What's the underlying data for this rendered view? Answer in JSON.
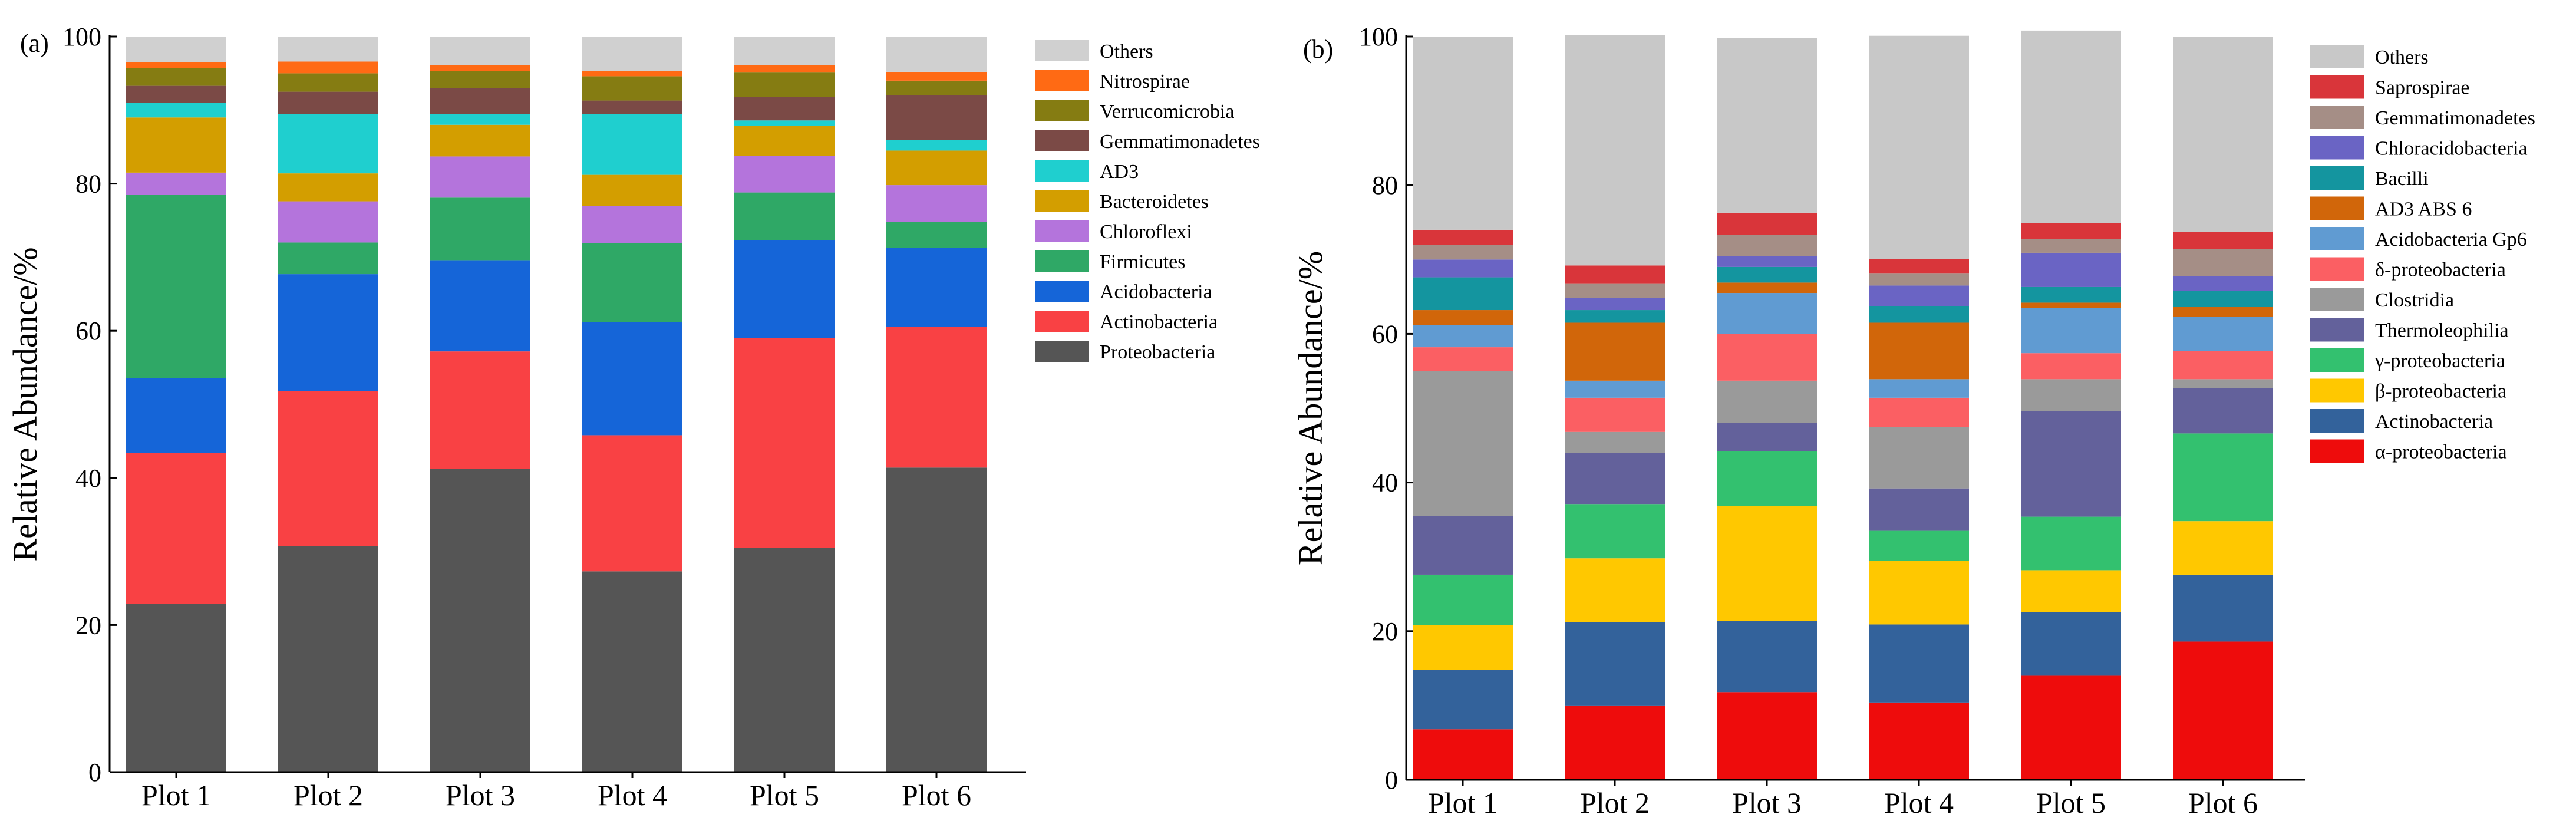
{
  "chart_data": [
    {
      "panel_label": "(a)",
      "type": "bar",
      "stacked": true,
      "ylabel": "Relative Abundance/%",
      "xlabel": "",
      "ylim": [
        0,
        100
      ],
      "yticks": [
        0,
        20,
        40,
        60,
        80,
        100
      ],
      "categories": [
        "Plot 1",
        "Plot 2",
        "Plot 3",
        "Plot 4",
        "Plot 5",
        "Plot 6"
      ],
      "legend_position": "right",
      "series": [
        {
          "name": "Proteobacteria",
          "color": "#555555",
          "values": [
            22.9,
            30.7,
            41.2,
            27.3,
            30.5,
            41.4
          ]
        },
        {
          "name": "Actinobacteria",
          "color": "#f94144",
          "values": [
            20.5,
            21.1,
            16.0,
            18.5,
            28.5,
            19.1
          ]
        },
        {
          "name": "Acidobacteria",
          "color": "#1565d8",
          "values": [
            10.2,
            15.9,
            12.4,
            15.4,
            13.3,
            10.8
          ]
        },
        {
          "name": "Firmicutes",
          "color": "#2fa866",
          "values": [
            24.9,
            4.3,
            8.5,
            10.7,
            6.5,
            3.5
          ]
        },
        {
          "name": "Chloroflexi",
          "color": "#b474dc",
          "values": [
            3.0,
            5.6,
            5.6,
            5.1,
            5.0,
            5.0
          ]
        },
        {
          "name": "Bacteroidetes",
          "color": "#d39e00",
          "values": [
            7.5,
            3.8,
            4.3,
            4.2,
            4.1,
            4.7
          ]
        },
        {
          "name": "AD3",
          "color": "#1fcfcf",
          "values": [
            2.0,
            8.1,
            1.5,
            8.3,
            0.7,
            1.4
          ]
        },
        {
          "name": "Gemmatimonadetes",
          "color": "#7b4a46",
          "values": [
            2.3,
            3.0,
            3.5,
            1.8,
            3.2,
            6.1
          ]
        },
        {
          "name": "Verrucomicrobia",
          "color": "#857c12",
          "values": [
            2.4,
            2.5,
            2.3,
            3.3,
            3.3,
            2.0
          ]
        },
        {
          "name": "Nitrospirae",
          "color": "#ff6a14",
          "values": [
            0.8,
            1.6,
            0.8,
            0.7,
            1.0,
            1.2
          ]
        },
        {
          "name": "Others",
          "color": "#d0d0d0",
          "values": [
            3.5,
            3.4,
            3.9,
            4.7,
            3.9,
            4.8
          ]
        }
      ]
    },
    {
      "panel_label": "(b)",
      "type": "bar",
      "stacked": true,
      "ylabel": "Relative Abundance/%",
      "xlabel": "",
      "ylim": [
        0,
        100
      ],
      "yticks": [
        0,
        20,
        40,
        60,
        80,
        100
      ],
      "categories": [
        "Plot 1",
        "Plot 2",
        "Plot 3",
        "Plot 4",
        "Plot 5",
        "Plot 6"
      ],
      "legend_position": "right",
      "series": [
        {
          "name": "α-proteobacteria",
          "color": "#ee0c0c",
          "values": [
            6.8,
            10.0,
            11.8,
            10.4,
            14.0,
            18.6
          ]
        },
        {
          "name": "Actinobacteria",
          "color": "#33629b",
          "values": [
            8.0,
            11.2,
            9.6,
            10.5,
            8.6,
            9.0
          ]
        },
        {
          "name": "β-proteobacteria",
          "color": "#ffc800",
          "values": [
            6.0,
            8.6,
            15.4,
            8.6,
            5.6,
            7.2
          ]
        },
        {
          "name": "γ-proteobacteria",
          "color": "#33c16f",
          "values": [
            6.8,
            7.3,
            7.4,
            4.0,
            7.2,
            11.8
          ]
        },
        {
          "name": "Thermoleophilia",
          "color": "#63619b",
          "values": [
            7.9,
            6.9,
            3.8,
            5.7,
            14.2,
            6.1
          ]
        },
        {
          "name": "Clostridia",
          "color": "#9a9a9a",
          "values": [
            19.5,
            2.8,
            5.7,
            8.3,
            4.3,
            1.2
          ]
        },
        {
          "name": "δ-proteobacteria",
          "color": "#fb5f63",
          "values": [
            3.2,
            4.6,
            6.3,
            3.9,
            3.5,
            3.8
          ]
        },
        {
          "name": "Acidobacteria Gp6",
          "color": "#609bd2",
          "values": [
            3.0,
            2.3,
            5.5,
            2.5,
            6.1,
            4.6
          ]
        },
        {
          "name": "AD3 ABS 6",
          "color": "#d1660a",
          "values": [
            2.0,
            7.8,
            1.4,
            7.6,
            0.7,
            1.3
          ]
        },
        {
          "name": "Bacilli",
          "color": "#14959f",
          "values": [
            4.4,
            1.7,
            2.1,
            2.2,
            2.1,
            2.2
          ]
        },
        {
          "name": "Chloracidobacteria",
          "color": "#6a64c4",
          "values": [
            2.4,
            1.6,
            1.5,
            2.8,
            4.6,
            2.0
          ]
        },
        {
          "name": "Gemmatimonadetes",
          "color": "#a58e86",
          "values": [
            2.0,
            2.0,
            2.8,
            1.6,
            1.9,
            3.6
          ]
        },
        {
          "name": "Saprospirae",
          "color": "#d9353a",
          "values": [
            2.0,
            2.4,
            3.0,
            2.0,
            2.1,
            2.3
          ]
        },
        {
          "name": "Others",
          "color": "#c8c8c8",
          "values": [
            26.0,
            31.0,
            23.5,
            30.0,
            25.9,
            26.3
          ]
        }
      ]
    }
  ]
}
